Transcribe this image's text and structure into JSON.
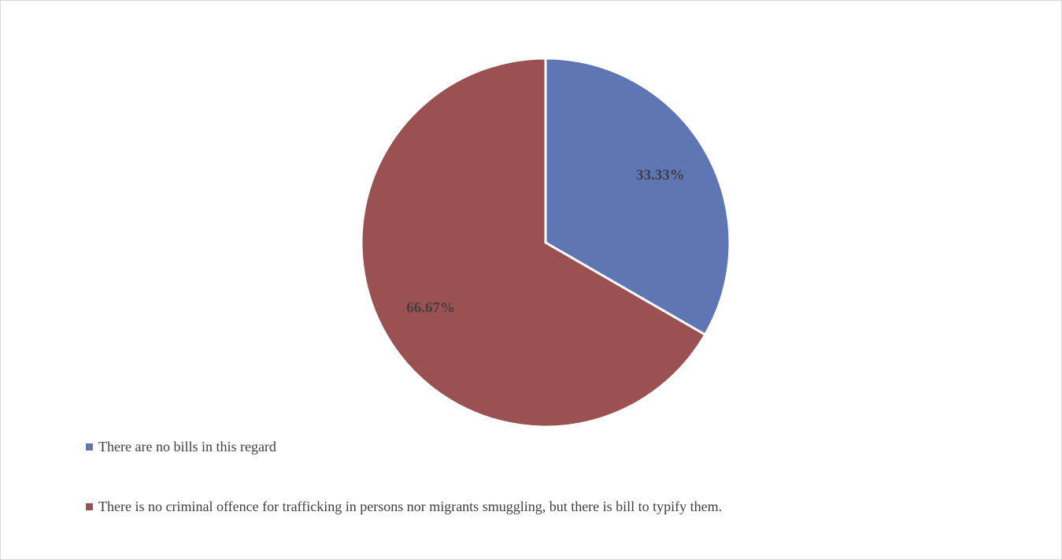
{
  "chart_data": {
    "type": "pie",
    "title": "",
    "legend_position": "bottom-left",
    "slices": [
      {
        "label": "There are no bills in this regard",
        "value": 33.33,
        "display": "33.33%",
        "color": "#5f75b4"
      },
      {
        "label": "There is no criminal offence for trafficking in persons nor migrants smuggling, but there is bill to typify them.",
        "value": 66.67,
        "display": "66.67%",
        "color": "#9b5151"
      }
    ]
  }
}
